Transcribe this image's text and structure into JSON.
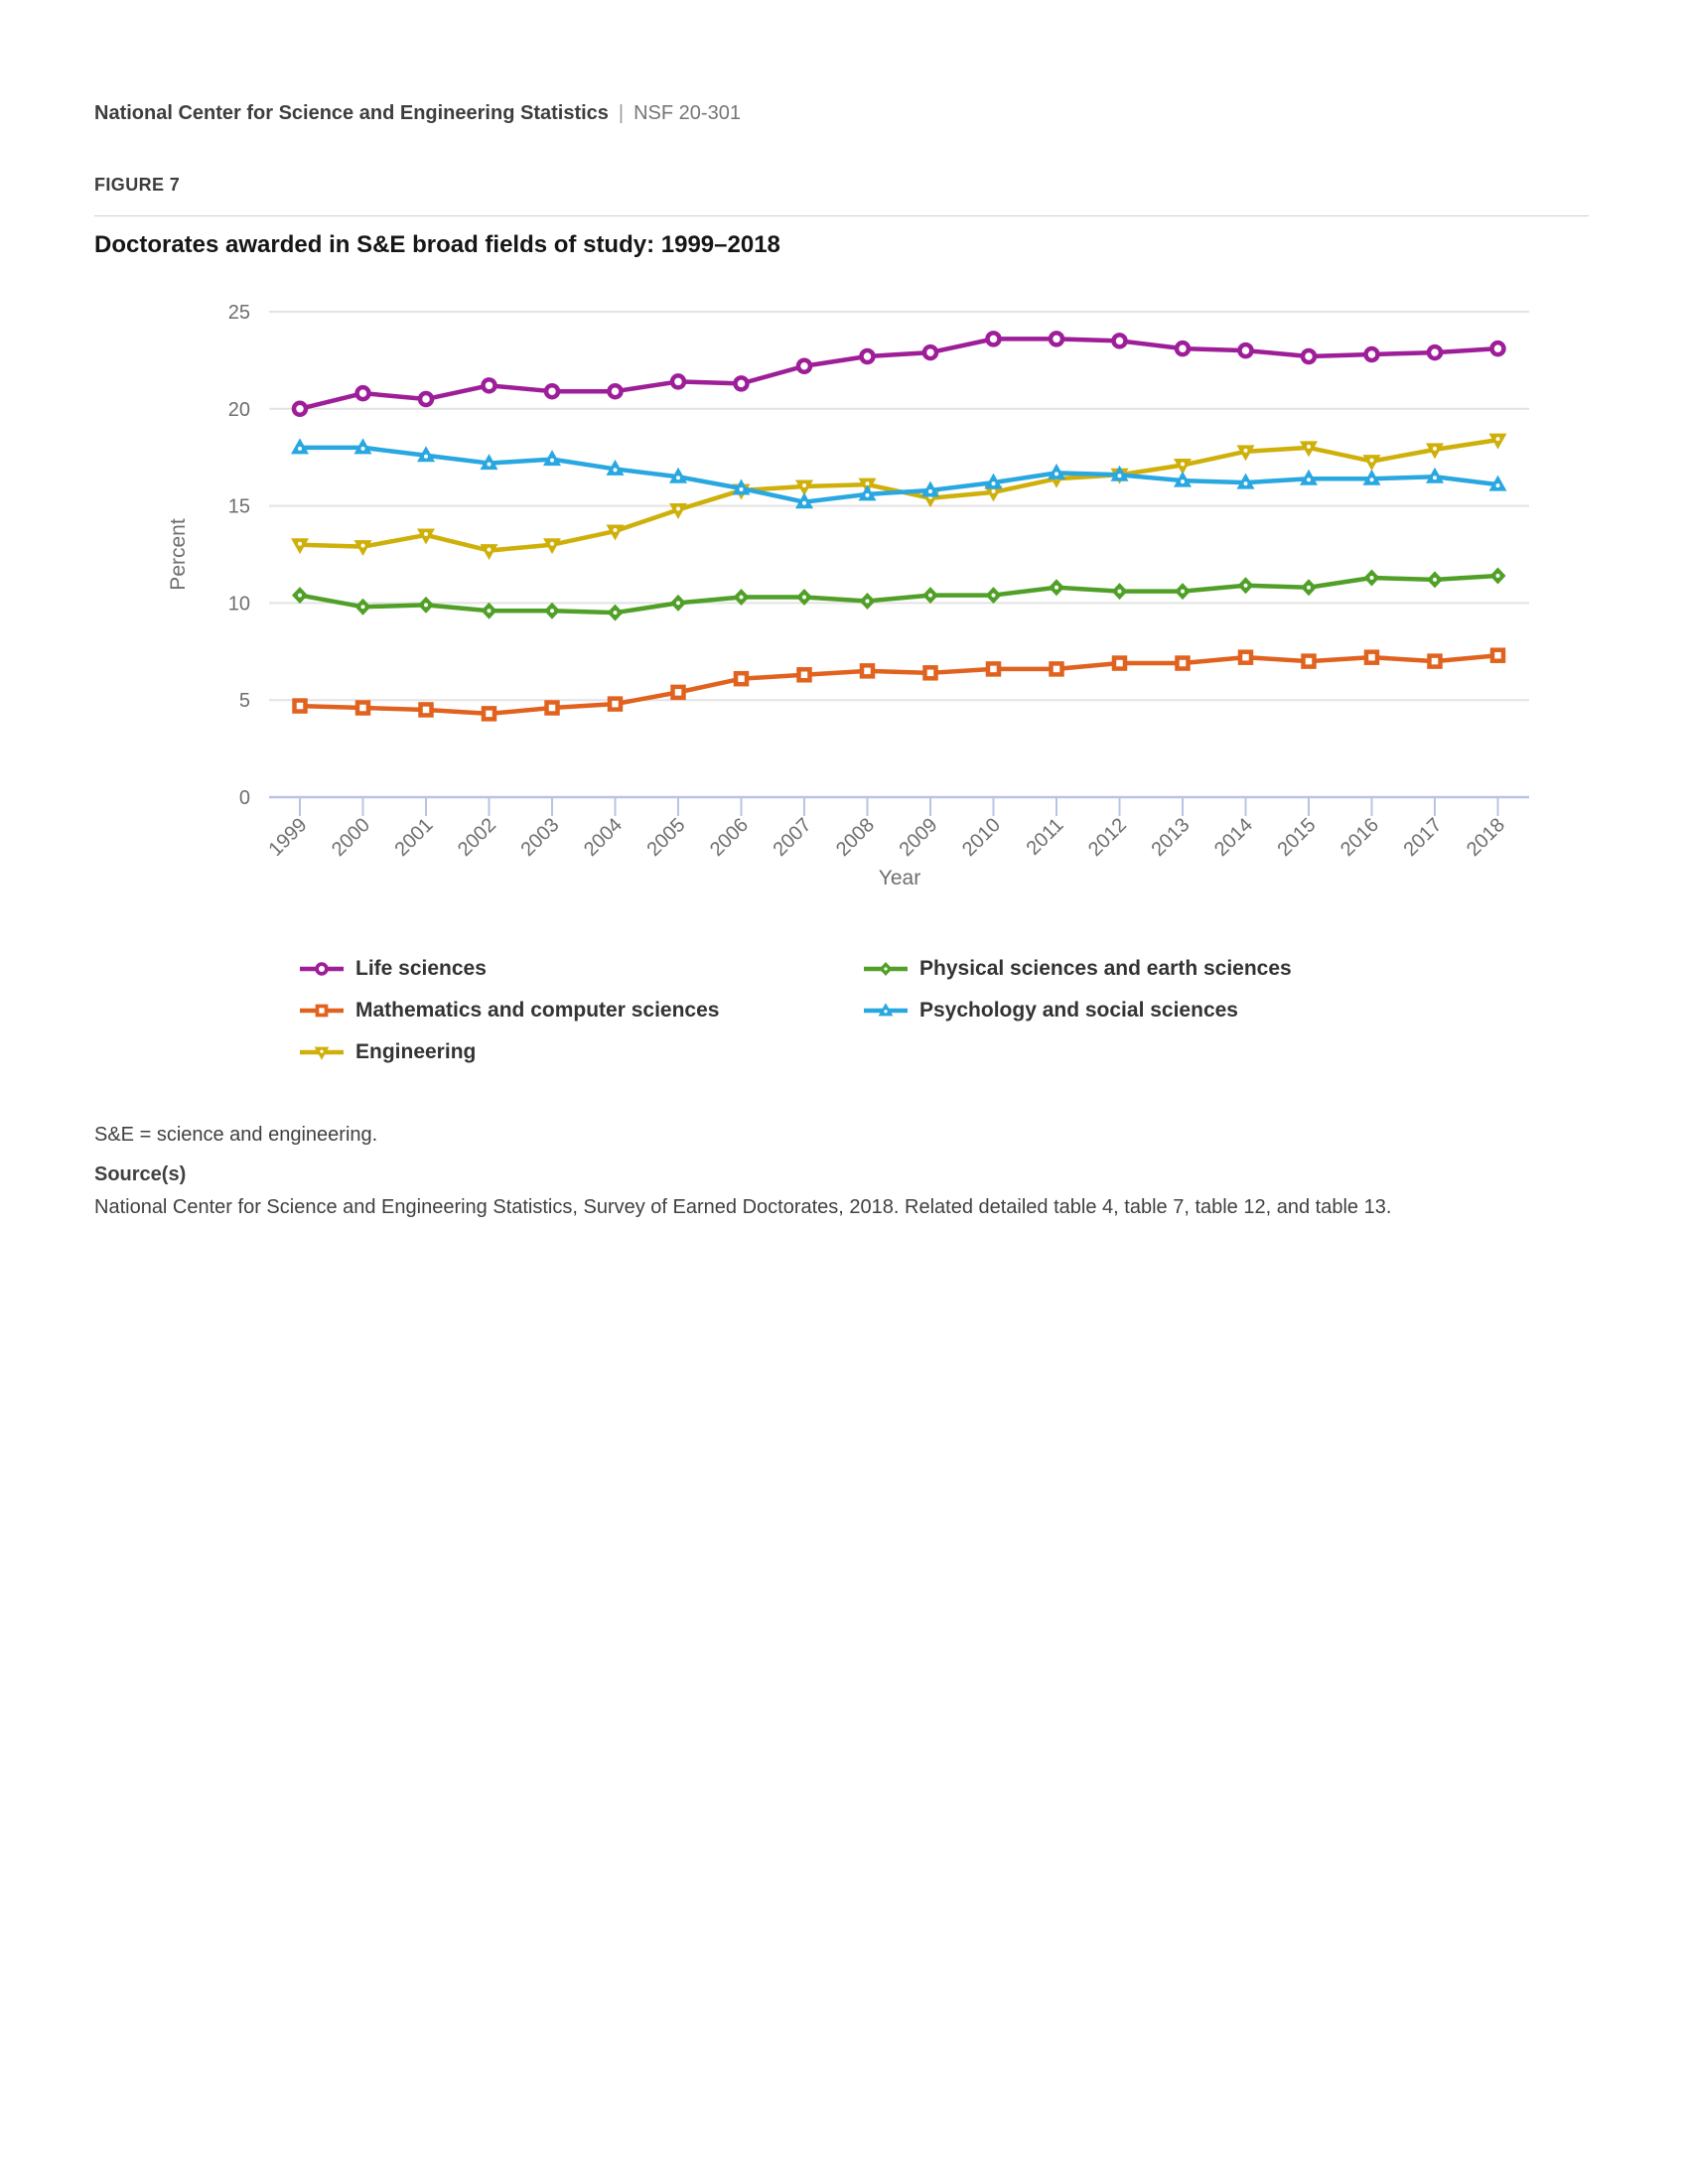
{
  "header": {
    "org": "National Center for Science and Engineering Statistics",
    "separator": "|",
    "report_number": "NSF 20-301"
  },
  "figure_label": "FIGURE 7",
  "chart_data": {
    "type": "line",
    "title": "Doctorates awarded in S&E broad fields of study: 1999–2018",
    "xlabel": "Year",
    "ylabel": "Percent",
    "ylim": [
      0,
      25
    ],
    "yticks": [
      0,
      5,
      10,
      15,
      20,
      25
    ],
    "grid": true,
    "legend_position": "bottom",
    "x": [
      1999,
      2000,
      2001,
      2002,
      2003,
      2004,
      2005,
      2006,
      2007,
      2008,
      2009,
      2010,
      2011,
      2012,
      2013,
      2014,
      2015,
      2016,
      2017,
      2018
    ],
    "series": [
      {
        "name": "Life sciences",
        "color": "#9e1d98",
        "marker": "circle-open",
        "values": [
          20.0,
          20.8,
          20.5,
          21.2,
          20.9,
          20.9,
          21.4,
          21.3,
          22.2,
          22.7,
          22.9,
          23.6,
          23.6,
          23.5,
          23.1,
          23.0,
          22.7,
          22.8,
          22.9,
          23.1
        ]
      },
      {
        "name": "Mathematics and computer sciences",
        "color": "#e0621e",
        "marker": "square-open",
        "values": [
          4.7,
          4.6,
          4.5,
          4.3,
          4.6,
          4.8,
          5.4,
          6.1,
          6.3,
          6.5,
          6.4,
          6.6,
          6.6,
          6.9,
          6.9,
          7.2,
          7.0,
          7.2,
          7.0,
          7.3
        ]
      },
      {
        "name": "Engineering",
        "color": "#cfb00a",
        "marker": "triangle-down",
        "values": [
          13.0,
          12.9,
          13.5,
          12.7,
          13.0,
          13.7,
          14.8,
          15.8,
          16.0,
          16.1,
          15.4,
          15.7,
          16.4,
          16.6,
          17.1,
          17.8,
          18.0,
          17.3,
          17.9,
          18.4
        ]
      },
      {
        "name": "Physical sciences and earth sciences",
        "color": "#50a028",
        "marker": "diamond",
        "values": [
          10.4,
          9.8,
          9.9,
          9.6,
          9.6,
          9.5,
          10.0,
          10.3,
          10.3,
          10.1,
          10.4,
          10.4,
          10.8,
          10.6,
          10.6,
          10.9,
          10.8,
          11.3,
          11.2,
          11.4
        ]
      },
      {
        "name": "Psychology and social sciences",
        "color": "#29a7e1",
        "marker": "triangle-up",
        "values": [
          18.0,
          18.0,
          17.6,
          17.2,
          17.4,
          16.9,
          16.5,
          15.9,
          15.2,
          15.6,
          15.8,
          16.2,
          16.7,
          16.6,
          16.3,
          16.2,
          16.4,
          16.4,
          16.5,
          16.1
        ]
      }
    ],
    "legend_order": [
      0,
      3,
      1,
      4,
      2
    ]
  },
  "footnotes": {
    "abbreviation": "S&E = science and engineering.",
    "source_heading": "Source(s)",
    "source_text": "National Center for Science and Engineering Statistics, Survey of Earned Doctorates, 2018. Related detailed table 4, table 7, table 12, and table 13."
  },
  "style_colors": {
    "gridline": "#e3e3e3",
    "axis_line": "#b9c4e3",
    "tick_label": "#6e6e6e",
    "axis_title": "#6e6e6e"
  }
}
